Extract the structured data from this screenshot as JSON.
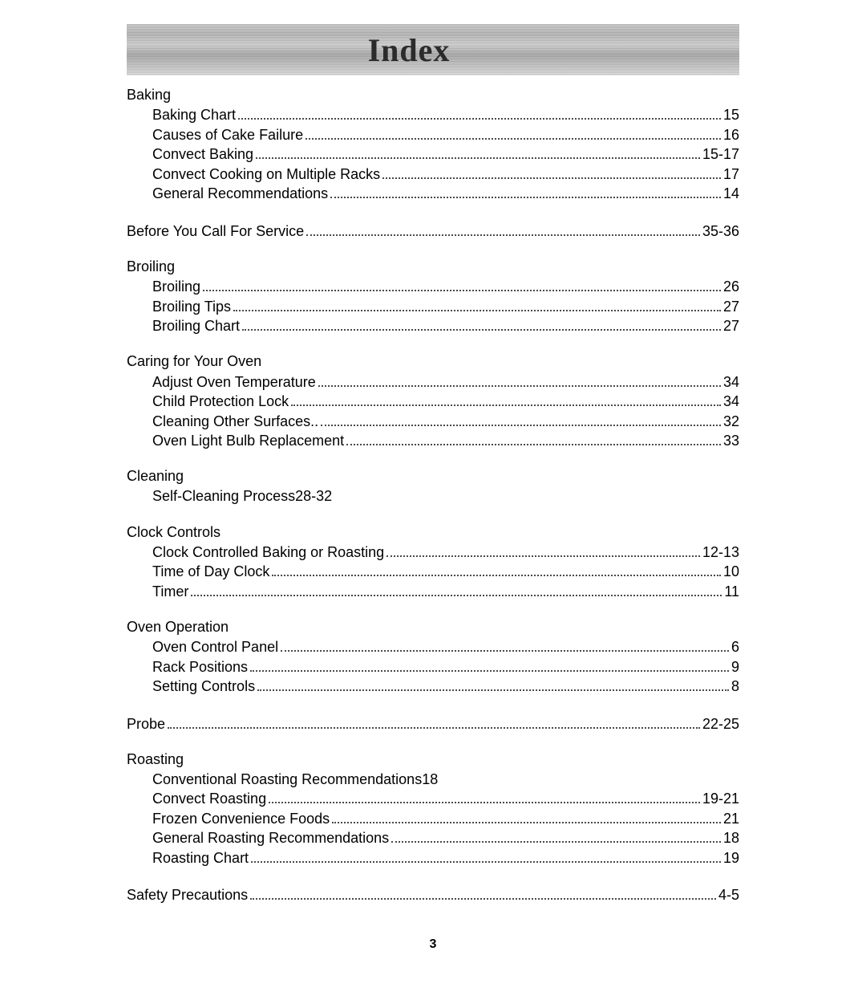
{
  "title": "Index",
  "footer_page": "3",
  "sections": [
    {
      "heading": "Baking",
      "entries": [
        {
          "label": "Baking Chart",
          "page": "15"
        },
        {
          "label": "Causes of Cake Failure",
          "page": "16"
        },
        {
          "label": "Convect Baking",
          "page": "15-17"
        },
        {
          "label": "Convect Cooking on Multiple Racks",
          "page": "17"
        },
        {
          "label": "General Recommendations",
          "page": "14"
        }
      ]
    },
    {
      "top_level_entry": {
        "label": "Before You Call For Service",
        "page": "35-36"
      }
    },
    {
      "heading": "Broiling",
      "entries": [
        {
          "label": "Broiling",
          "page": "26"
        },
        {
          "label": "Broiling Tips",
          "page": "27"
        },
        {
          "label": "Broiling Chart",
          "page": "27"
        }
      ]
    },
    {
      "heading": "Caring for Your Oven",
      "entries": [
        {
          "label": "Adjust Oven Temperature",
          "page": "34"
        },
        {
          "label": "Child Protection Lock",
          "page": "34"
        },
        {
          "label": "Cleaning Other Surfaces..",
          "page": "32"
        },
        {
          "label": "Oven Light Bulb Replacement",
          "page": "33"
        }
      ]
    },
    {
      "heading": "Cleaning",
      "inline_entry": {
        "label": "Self-Cleaning Process",
        "page": "28-32"
      }
    },
    {
      "heading": "Clock Controls",
      "entries": [
        {
          "label": "Clock Controlled Baking or Roasting",
          "page": "12-13"
        },
        {
          "label": "Time of Day Clock",
          "page": "10"
        },
        {
          "label": "Timer",
          "page": "11"
        }
      ]
    },
    {
      "heading": "Oven Operation",
      "entries": [
        {
          "label": "Oven Control Panel",
          "page": "6"
        },
        {
          "label": "Rack Positions",
          "page": "9"
        },
        {
          "label": "Setting Controls",
          "page": "8"
        }
      ]
    },
    {
      "top_level_entry": {
        "label": "Probe",
        "page": "22-25"
      }
    },
    {
      "heading": "Roasting",
      "inline_entry": {
        "label": "Conventional Roasting Recommendations",
        "page": "18"
      },
      "entries": [
        {
          "label": "Convect Roasting",
          "page": "19-21"
        },
        {
          "label": "Frozen Convenience Foods",
          "page": "21"
        },
        {
          "label": "General Roasting Recommendations",
          "page": "18"
        },
        {
          "label": "Roasting Chart",
          "page": "19"
        }
      ]
    },
    {
      "top_level_entry": {
        "label": "Safety Precautions",
        "page": "4-5"
      }
    }
  ]
}
